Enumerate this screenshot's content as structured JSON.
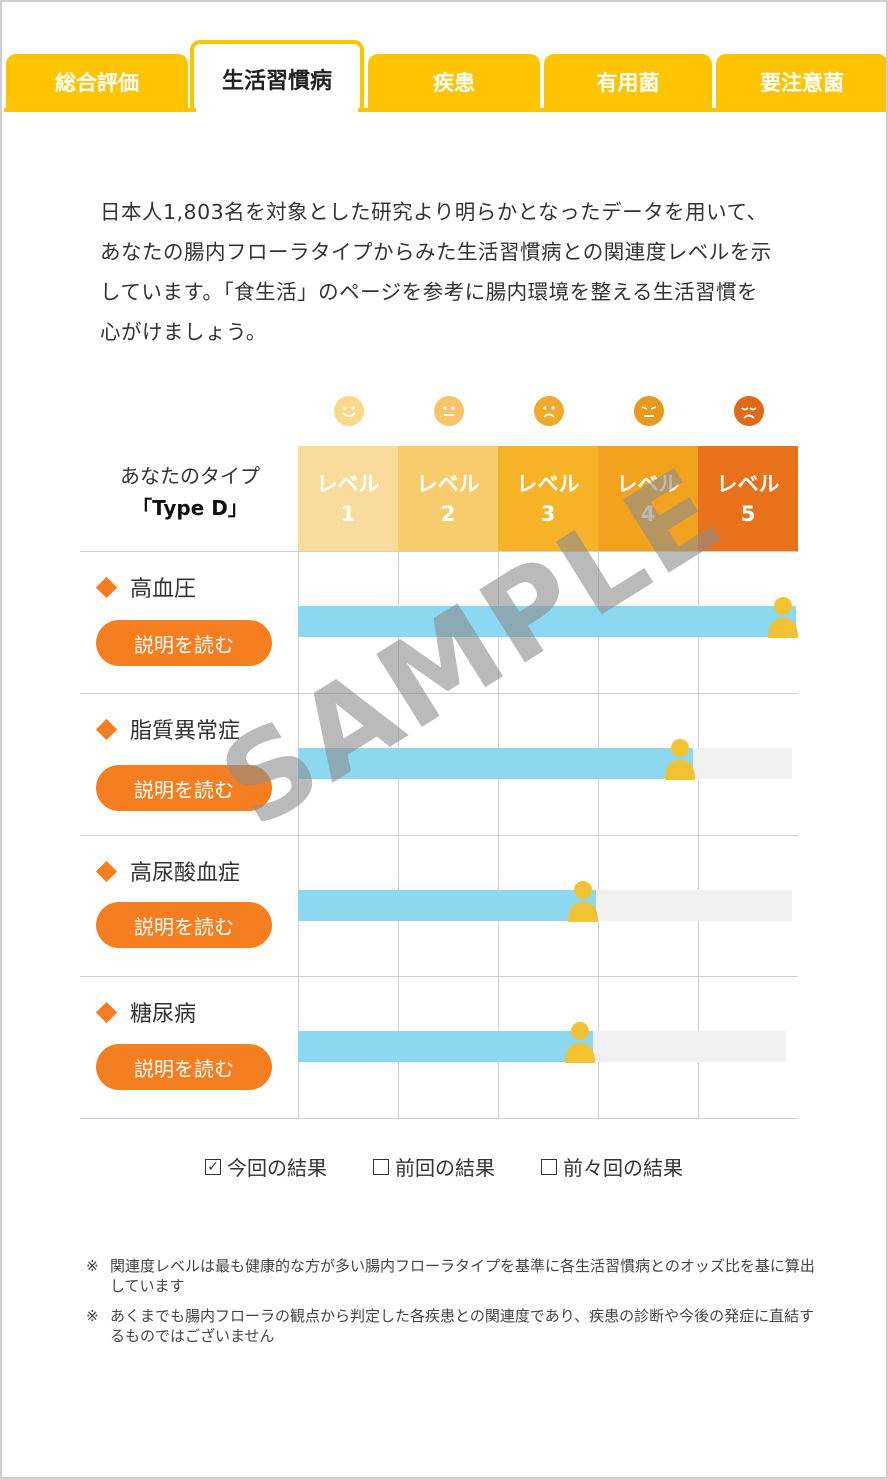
{
  "tabs": [
    {
      "label": "総合評価"
    },
    {
      "label": "生活習慣病"
    },
    {
      "label": "疾患"
    },
    {
      "label": "有用菌"
    },
    {
      "label": "要注意菌"
    }
  ],
  "intro": {
    "lines": [
      "日本人1,803名を対象とした研究より明らかとなったデータを用いて、",
      "あなたの腸内フローラタイプからみた生活習慣病との関連度レベルを示",
      "しています。「食生活」のページを参考に腸内環境を整える生活習慣を",
      "心がけましょう。"
    ]
  },
  "type_header": {
    "line1": "あなたのタイプ",
    "line2": "「Type D」"
  },
  "levels": [
    {
      "label": "レベル",
      "num": "1",
      "color": "#f9dc9c",
      "face": "smile",
      "face_color": "#f9d88a"
    },
    {
      "label": "レベル",
      "num": "2",
      "color": "#f8cc6a",
      "face": "neutral",
      "face_color": "#f6c56b"
    },
    {
      "label": "レベル",
      "num": "3",
      "color": "#f6b328",
      "face": "frown",
      "face_color": "#eeaa2a"
    },
    {
      "label": "レベル",
      "num": "4",
      "color": "#f3a21f",
      "face": "squint",
      "face_color": "#e9981f"
    },
    {
      "label": "レベル",
      "num": "5",
      "color": "#e87119",
      "face": "sad",
      "face_color": "#e06a1a"
    }
  ],
  "diseases": [
    {
      "name": "高血圧",
      "button": "説明を読む",
      "level": 5.0
    },
    {
      "name": "脂質異常症",
      "button": "説明を読む",
      "level": 3.95
    },
    {
      "name": "高尿酸血症",
      "button": "説明を読む",
      "level": 2.98
    },
    {
      "name": "糖尿病",
      "button": "説明を読む",
      "level": 2.95
    }
  ],
  "legend": [
    {
      "label": "今回の結果",
      "checked": true
    },
    {
      "label": "前回の結果",
      "checked": false
    },
    {
      "label": "前々回の結果",
      "checked": false
    }
  ],
  "notes": [
    {
      "mark": "※",
      "text": "関連度レベルは最も健康的な方が多い腸内フローラタイプを基準に各生活習慣病とのオッズ比を基に算出しています"
    },
    {
      "mark": "※",
      "text": "あくまでも腸内フローラの観点から判定した各疾患との関連度であり、疾患の診断や今後の発症に直結するものではございません"
    }
  ],
  "watermark": "SAMPLE",
  "colors": {
    "tab": "#ffc400",
    "bar": "#8cd8f0",
    "button": "#f57f20",
    "person": "#f1c232"
  }
}
